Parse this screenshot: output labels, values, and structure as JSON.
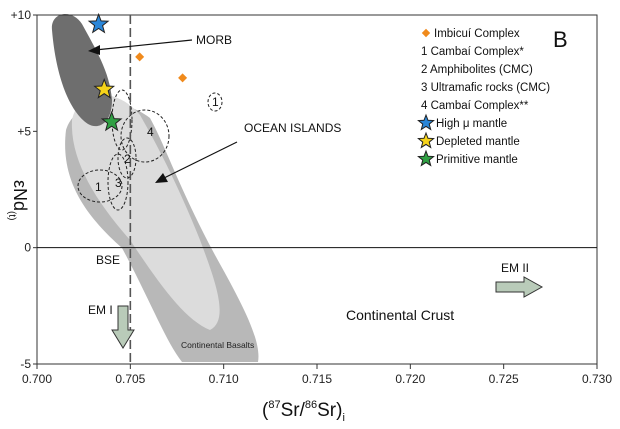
{
  "chart_data": {
    "type": "scatter",
    "panel_label": "B",
    "xlim": [
      0.7,
      0.73
    ],
    "ylim": [
      -5,
      10
    ],
    "x_ticks": [
      0.7,
      0.705,
      0.71,
      0.715,
      0.72,
      0.725,
      0.73
    ],
    "x_tick_labels": [
      "0.700",
      "0.705",
      "0.710",
      "0.715",
      "0.720",
      "0.725",
      "0.730"
    ],
    "y_ticks": [
      10,
      5,
      0,
      -5
    ],
    "y_tick_labels": [
      "+10",
      "+5",
      "0",
      "-5"
    ],
    "xlabel": {
      "open": "(",
      "sup_a": "87",
      "mid_a": "Sr/",
      "sup_b": "86",
      "mid_b": "Sr)",
      "sub": "i"
    },
    "ylabel": {
      "main": "εNd",
      "sub": "(t)"
    },
    "reference_lines": [
      {
        "axis": "x",
        "value": 0.705,
        "style": "dashed",
        "color": "#555555"
      },
      {
        "axis": "y",
        "value": 0,
        "style": "solid",
        "color": "#111111"
      }
    ],
    "points": [
      {
        "x": 0.7055,
        "y": 8.2,
        "symbol": "diamond",
        "color": "#f08a1c"
      },
      {
        "x": 0.7078,
        "y": 7.3,
        "symbol": "diamond",
        "color": "#f08a1c"
      },
      {
        "x": 0.7033,
        "y": 9.6,
        "symbol": "star",
        "color": "#2a86d8"
      },
      {
        "x": 0.7036,
        "y": 6.8,
        "symbol": "star",
        "color": "#f6d31a"
      },
      {
        "x": 0.704,
        "y": 5.4,
        "symbol": "star",
        "color": "#2fa043"
      }
    ],
    "series_legend": [
      {
        "label": "Imbicuí Complex",
        "symbol": "diamond",
        "color": "#f08a1c"
      },
      {
        "label": "1 Cambaí Complex*",
        "symbol": "none"
      },
      {
        "label": "2 Amphibolites (CMC)",
        "symbol": "none"
      },
      {
        "label": "3 Ultramafic rocks (CMC)",
        "symbol": "none"
      },
      {
        "label": "4 Cambaí Complex**",
        "symbol": "none"
      },
      {
        "label": "High μ mantle",
        "symbol": "star",
        "color": "#2a86d8"
      },
      {
        "label": "Depleted mantle",
        "symbol": "star",
        "color": "#f6d31a"
      },
      {
        "label": "Primitive mantle",
        "symbol": "star",
        "color": "#2fa043"
      }
    ],
    "legend_position": "top-right",
    "field_labels": {
      "morb": "MORB",
      "ocean_islands": "OCEAN ISLANDS",
      "bse": "BSE",
      "em1": "EM I",
      "em2": "EM II",
      "continental_crust": "Continental Crust",
      "continental_basalts": "Continental Basalts"
    },
    "field_numbers": [
      "1",
      "2",
      "3",
      "4",
      "1"
    ],
    "colors": {
      "morb_field": "#6e6e6e",
      "ocean_islands_field": "#c8c8c8",
      "continental_basalts_field": "#b8b8b8",
      "inner_field": "#dcdcdc",
      "arrow_fill": "#b9cbb9"
    }
  }
}
